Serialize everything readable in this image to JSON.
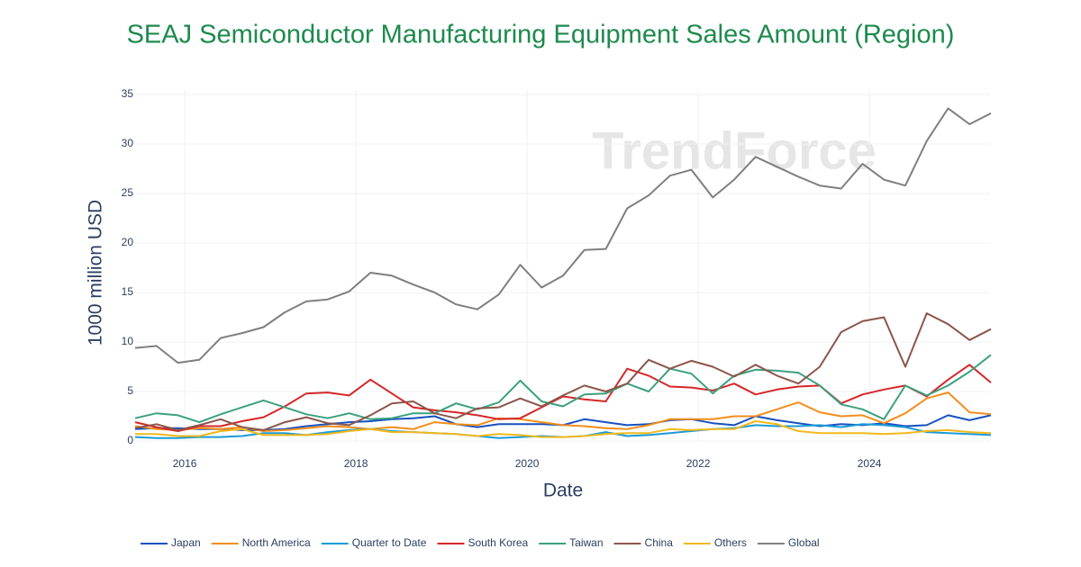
{
  "chart_data": {
    "type": "line",
    "title": "SEAJ Semiconductor Manufacturing Equipment Sales Amount (Region)",
    "watermark": "TrendForce",
    "x_label": "Date",
    "y_label": "1000 million USD",
    "x": [
      2015.42,
      2015.67,
      2015.92,
      2016.17,
      2016.42,
      2016.67,
      2016.92,
      2017.17,
      2017.42,
      2017.67,
      2017.92,
      2018.17,
      2018.42,
      2018.67,
      2018.92,
      2019.17,
      2019.42,
      2019.67,
      2019.92,
      2020.17,
      2020.42,
      2020.67,
      2020.92,
      2021.17,
      2021.42,
      2021.67,
      2021.92,
      2022.17,
      2022.42,
      2022.67,
      2022.92,
      2023.17,
      2023.42,
      2023.67,
      2023.92,
      2024.17,
      2024.42,
      2024.67,
      2024.92,
      2025.17,
      2025.42
    ],
    "xlim": [
      2015.42,
      2025.42
    ],
    "xticks": [
      2016,
      2018,
      2020,
      2022,
      2024
    ],
    "ylim": [
      0,
      35
    ],
    "yticks": [
      0,
      5,
      10,
      15,
      20,
      25,
      30,
      35
    ],
    "grid": true,
    "legend": "bottom",
    "series": [
      {
        "name": "Japan",
        "color": "#1751c0",
        "values": [
          1.2,
          1.3,
          1.3,
          1.2,
          1.2,
          1.1,
          1.1,
          1.2,
          1.5,
          1.7,
          1.9,
          2.0,
          2.2,
          2.3,
          2.5,
          1.7,
          1.4,
          1.7,
          1.7,
          1.7,
          1.6,
          2.2,
          1.9,
          1.6,
          1.7,
          2.1,
          2.2,
          1.8,
          1.6,
          2.5,
          2.1,
          1.8,
          1.5,
          1.7,
          1.6,
          1.8,
          1.5,
          1.6,
          2.6,
          2.1,
          2.6
        ]
      },
      {
        "name": "North America",
        "color": "#f28e1c",
        "values": [
          1.5,
          1.2,
          1.1,
          1.3,
          1.2,
          1.4,
          1.0,
          1.1,
          1.3,
          1.5,
          1.4,
          1.2,
          1.4,
          1.2,
          1.9,
          1.7,
          1.6,
          2.3,
          2.2,
          1.9,
          1.6,
          1.5,
          1.3,
          1.2,
          1.6,
          2.2,
          2.2,
          2.2,
          2.5,
          2.5,
          3.2,
          3.9,
          2.9,
          2.5,
          2.6,
          1.8,
          2.8,
          4.3,
          4.9,
          2.9,
          2.7
        ]
      },
      {
        "name": "Quarter to Date",
        "color": "#1a9bd7",
        "values": [
          0.4,
          0.3,
          0.3,
          0.4,
          0.4,
          0.5,
          0.8,
          0.8,
          0.6,
          0.9,
          1.1,
          1.2,
          1.0,
          0.9,
          0.8,
          0.7,
          0.5,
          0.3,
          0.4,
          0.5,
          0.4,
          0.5,
          0.9,
          0.5,
          0.6,
          0.8,
          1.0,
          1.2,
          1.3,
          1.6,
          1.5,
          1.5,
          1.6,
          1.4,
          1.7,
          1.6,
          1.4,
          0.9,
          0.8,
          0.7,
          0.6
        ]
      },
      {
        "name": "South Korea",
        "color": "#d62728",
        "values": [
          1.9,
          1.4,
          1.0,
          1.5,
          1.5,
          2.0,
          2.4,
          3.5,
          4.8,
          4.9,
          4.6,
          6.2,
          4.8,
          3.4,
          3.1,
          2.9,
          2.6,
          2.2,
          2.3,
          3.4,
          4.5,
          4.2,
          4.0,
          7.3,
          6.6,
          5.5,
          5.4,
          5.1,
          5.8,
          4.7,
          5.2,
          5.5,
          5.6,
          3.8,
          4.7,
          5.2,
          5.6,
          4.5,
          6.2,
          7.7,
          5.9
        ]
      },
      {
        "name": "Taiwan",
        "color": "#3aa17e",
        "values": [
          2.3,
          2.8,
          2.6,
          1.9,
          2.7,
          3.4,
          4.1,
          3.4,
          2.7,
          2.3,
          2.8,
          2.2,
          2.3,
          2.8,
          2.8,
          3.8,
          3.2,
          3.9,
          6.1,
          4.0,
          3.5,
          4.7,
          4.8,
          5.8,
          5.0,
          7.3,
          6.8,
          4.8,
          6.6,
          7.2,
          7.1,
          6.9,
          5.6,
          3.7,
          3.2,
          2.2,
          5.6,
          4.6,
          5.6,
          7.0,
          8.7
        ]
      },
      {
        "name": "China",
        "color": "#8c564b",
        "values": [
          1.3,
          1.7,
          1.1,
          1.6,
          2.2,
          1.4,
          1.1,
          1.9,
          2.4,
          1.8,
          1.6,
          2.6,
          3.8,
          4.0,
          2.8,
          2.3,
          3.3,
          3.4,
          4.3,
          3.5,
          4.6,
          5.6,
          5.0,
          5.8,
          8.2,
          7.3,
          8.1,
          7.5,
          6.5,
          7.7,
          6.6,
          5.8,
          7.5,
          11.0,
          12.1,
          12.5,
          7.5,
          12.9,
          11.8,
          10.2,
          11.3
        ]
      },
      {
        "name": "Others",
        "color": "#f2b81b",
        "values": [
          0.7,
          0.7,
          0.5,
          0.5,
          1.0,
          1.2,
          0.6,
          0.6,
          0.6,
          0.7,
          1.0,
          1.2,
          0.9,
          0.9,
          0.8,
          0.7,
          0.5,
          0.7,
          0.6,
          0.4,
          0.4,
          0.5,
          0.7,
          0.8,
          0.8,
          1.2,
          1.1,
          1.2,
          1.2,
          2.0,
          1.7,
          1.0,
          0.8,
          0.8,
          0.8,
          0.7,
          0.8,
          1.0,
          1.1,
          0.9,
          0.8
        ]
      },
      {
        "name": "Global",
        "color": "#7f7f7f",
        "values": [
          9.4,
          9.6,
          7.9,
          8.2,
          10.4,
          10.9,
          11.5,
          13.0,
          14.1,
          14.3,
          15.1,
          17.0,
          16.7,
          15.8,
          15.0,
          13.8,
          13.3,
          14.8,
          17.8,
          15.5,
          16.7,
          19.3,
          19.4,
          23.5,
          24.8,
          26.8,
          27.4,
          24.6,
          26.4,
          28.7,
          27.7,
          26.7,
          25.8,
          25.5,
          28.0,
          26.4,
          25.8,
          30.3,
          33.6,
          32.0,
          33.1
        ]
      }
    ]
  }
}
